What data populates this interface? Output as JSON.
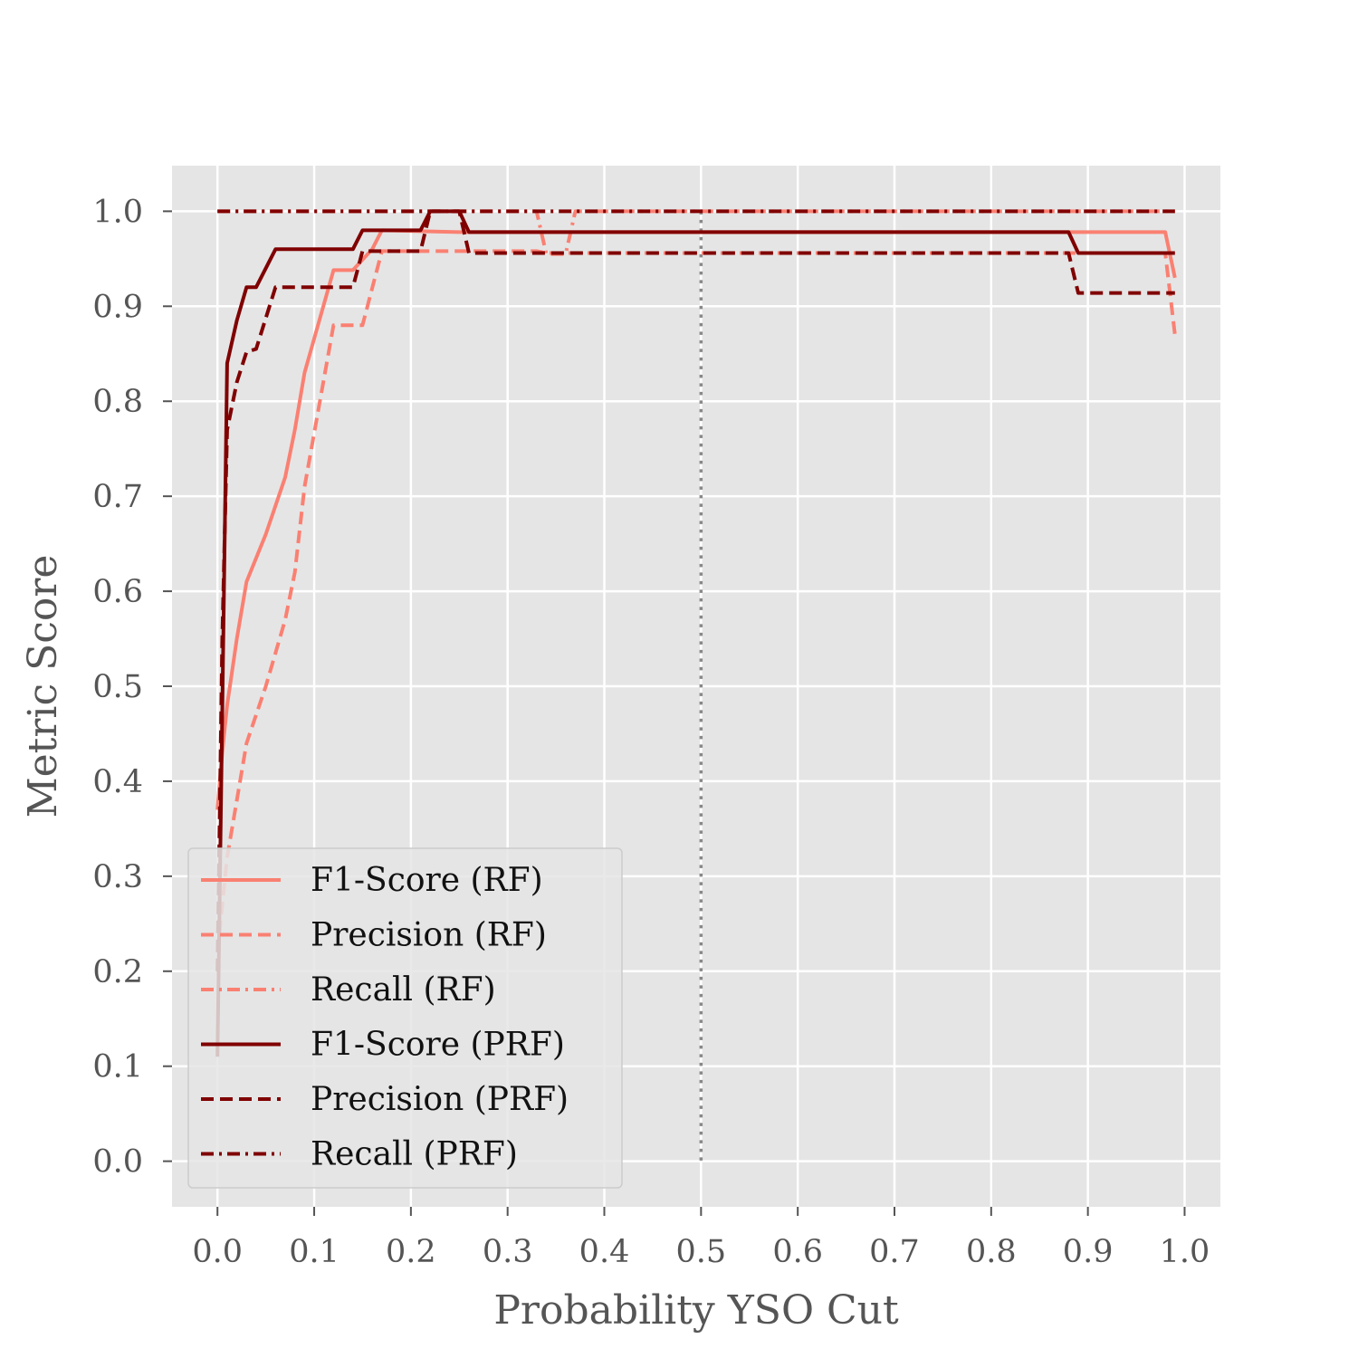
{
  "chart_data": {
    "type": "line",
    "xlabel": "Probability YSO Cut",
    "ylabel": "Metric Score",
    "xlim": [
      -0.047,
      1.037
    ],
    "ylim": [
      -0.048,
      1.048
    ],
    "xticks": [
      0.0,
      0.1,
      0.2,
      0.3,
      0.4,
      0.5,
      0.6,
      0.7,
      0.8,
      0.9,
      1.0
    ],
    "xtick_labels": [
      "0.0",
      "0.1",
      "0.2",
      "0.3",
      "0.4",
      "0.5",
      "0.6",
      "0.7",
      "0.8",
      "0.9",
      "1.0"
    ],
    "yticks": [
      0.0,
      0.1,
      0.2,
      0.3,
      0.4,
      0.5,
      0.6,
      0.7,
      0.8,
      0.9,
      1.0
    ],
    "ytick_labels": [
      "0.0",
      "0.1",
      "0.2",
      "0.3",
      "0.4",
      "0.5",
      "0.6",
      "0.7",
      "0.8",
      "0.9",
      "1.0"
    ],
    "grid": true,
    "background": "#e5e5e5",
    "legend_position": "lower-left",
    "vline": {
      "x": 0.5,
      "style": "dotted",
      "color": "#888888"
    },
    "series": [
      {
        "name": "F1-Score (RF)",
        "color": "#fa8072",
        "style": "solid",
        "points": [
          [
            0.0,
            0.37
          ],
          [
            0.005,
            0.43
          ],
          [
            0.01,
            0.48
          ],
          [
            0.02,
            0.55
          ],
          [
            0.03,
            0.61
          ],
          [
            0.05,
            0.66
          ],
          [
            0.07,
            0.72
          ],
          [
            0.08,
            0.77
          ],
          [
            0.09,
            0.83
          ],
          [
            0.12,
            0.938
          ],
          [
            0.14,
            0.938
          ],
          [
            0.16,
            0.96
          ],
          [
            0.17,
            0.98
          ],
          [
            0.25,
            0.978
          ],
          [
            0.5,
            0.978
          ],
          [
            0.98,
            0.978
          ],
          [
            0.99,
            0.93
          ]
        ]
      },
      {
        "name": "Precision (RF)",
        "color": "#fa8072",
        "style": "dashed",
        "points": [
          [
            0.0,
            0.22
          ],
          [
            0.01,
            0.32
          ],
          [
            0.03,
            0.44
          ],
          [
            0.05,
            0.5
          ],
          [
            0.07,
            0.57
          ],
          [
            0.08,
            0.62
          ],
          [
            0.09,
            0.71
          ],
          [
            0.12,
            0.88
          ],
          [
            0.15,
            0.88
          ],
          [
            0.17,
            0.958
          ],
          [
            0.33,
            0.958
          ],
          [
            0.34,
            0.956
          ],
          [
            0.5,
            0.956
          ],
          [
            0.98,
            0.956
          ],
          [
            0.99,
            0.87
          ]
        ]
      },
      {
        "name": "Recall (RF)",
        "color": "#fa8072",
        "style": "dashdot",
        "points": [
          [
            0.0,
            1.0
          ],
          [
            0.33,
            1.0
          ],
          [
            0.34,
            0.955
          ],
          [
            0.36,
            0.955
          ],
          [
            0.37,
            1.0
          ],
          [
            0.5,
            1.0
          ],
          [
            0.99,
            1.0
          ]
        ]
      },
      {
        "name": "F1-Score (PRF)",
        "color": "#800000",
        "style": "solid",
        "points": [
          [
            0.0,
            0.11
          ],
          [
            0.003,
            0.33
          ],
          [
            0.01,
            0.84
          ],
          [
            0.02,
            0.885
          ],
          [
            0.03,
            0.92
          ],
          [
            0.04,
            0.92
          ],
          [
            0.06,
            0.96
          ],
          [
            0.14,
            0.96
          ],
          [
            0.15,
            0.98
          ],
          [
            0.21,
            0.98
          ],
          [
            0.22,
            1.0
          ],
          [
            0.25,
            1.0
          ],
          [
            0.26,
            0.978
          ],
          [
            0.5,
            0.978
          ],
          [
            0.88,
            0.978
          ],
          [
            0.89,
            0.956
          ],
          [
            0.99,
            0.956
          ]
        ]
      },
      {
        "name": "Precision (PRF)",
        "color": "#800000",
        "style": "dashed",
        "points": [
          [
            0.0,
            0.2
          ],
          [
            0.005,
            0.55
          ],
          [
            0.01,
            0.77
          ],
          [
            0.02,
            0.82
          ],
          [
            0.03,
            0.852
          ],
          [
            0.04,
            0.855
          ],
          [
            0.06,
            0.92
          ],
          [
            0.14,
            0.92
          ],
          [
            0.15,
            0.958
          ],
          [
            0.21,
            0.958
          ],
          [
            0.22,
            1.0
          ],
          [
            0.25,
            1.0
          ],
          [
            0.26,
            0.956
          ],
          [
            0.5,
            0.956
          ],
          [
            0.88,
            0.956
          ],
          [
            0.89,
            0.914
          ],
          [
            0.99,
            0.914
          ]
        ]
      },
      {
        "name": "Recall (PRF)",
        "color": "#800000",
        "style": "dashdot",
        "points": [
          [
            0.0,
            1.0
          ],
          [
            0.5,
            1.0
          ],
          [
            0.99,
            1.0
          ]
        ]
      }
    ]
  }
}
